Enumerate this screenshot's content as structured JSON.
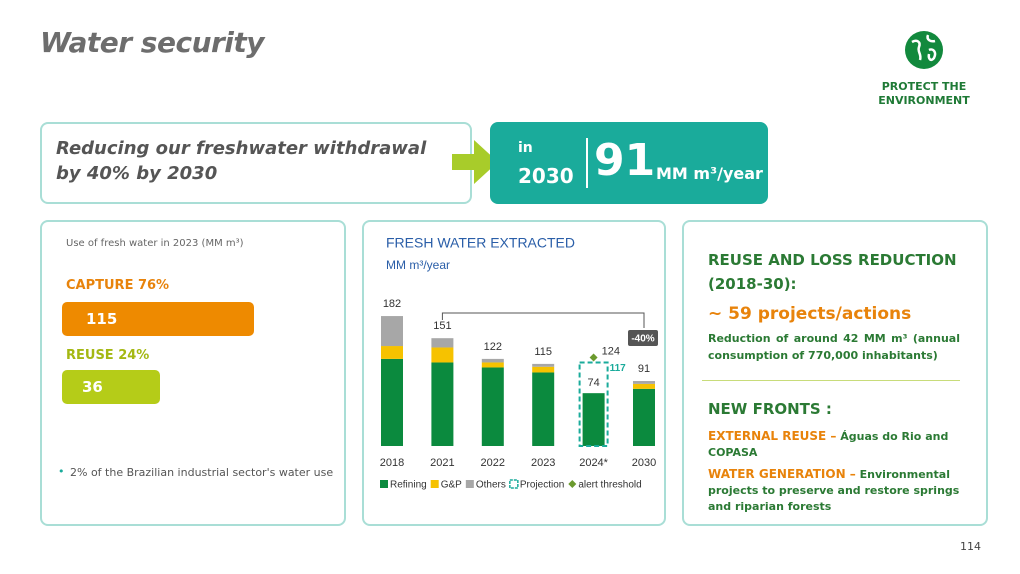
{
  "title": "Water security",
  "badge": [
    "PROTECT THE",
    "ENVIRONMENT"
  ],
  "goal": {
    "text": [
      "Reducing our freshwater withdrawal",
      "by 40% by 2030"
    ],
    "in": "in",
    "year": "2030",
    "value": "91",
    "unit": "MM m³/year"
  },
  "left_panel": {
    "caption": "Use of fresh water in 2023 (MM m³)",
    "items": [
      {
        "label": "CAPTURE 76%",
        "value": 115
      },
      {
        "label": "REUSE 24%",
        "value": 36
      }
    ],
    "note": "2% of the Brazilian industrial sector's water use"
  },
  "right_panel": {
    "heading": "REUSE AND LOSS REDUCTION (2018-30):",
    "projects": "~ 59 projects/actions",
    "body": "Reduction of around 42 MM m³ (annual consumption of 770,000 inhabitants)",
    "fronts_heading": "NEW FRONTS :",
    "fronts": [
      {
        "label": "EXTERNAL REUSE –",
        "text": "Águas do Rio and COPASA"
      },
      {
        "label": "WATER GENERATION –",
        "text": "Environmental projects to preserve and restore springs and riparian forests"
      }
    ]
  },
  "page_number": "114",
  "chart_data": {
    "type": "bar",
    "stacked": true,
    "title": "FRESH WATER EXTRACTED",
    "subtitle": "MM m³/year",
    "categories": [
      "2018",
      "2021",
      "2022",
      "2023",
      "2024*",
      "2030"
    ],
    "series": [
      {
        "name": "Refining",
        "color": "#0b8a3e",
        "values": [
          122,
          117,
          110,
          103,
          74,
          80
        ],
        "value_labels": [
          null,
          null,
          null,
          null,
          "74",
          null
        ]
      },
      {
        "name": "G&P",
        "color": "#f6c200",
        "values": [
          18,
          21,
          7,
          8,
          null,
          7
        ]
      },
      {
        "name": "Others",
        "color": "#a7a7a7",
        "values": [
          42,
          13,
          5,
          4,
          null,
          4
        ]
      },
      {
        "name": "Projection",
        "color": "#1aab9b",
        "style": "dashed",
        "values": [
          null,
          null,
          null,
          null,
          117,
          null
        ],
        "value_labels": [
          null,
          null,
          null,
          null,
          "117",
          null
        ]
      },
      {
        "name": "alert threshold",
        "color": "#6b9a2e",
        "marker": "diamond",
        "values": [
          null,
          null,
          null,
          null,
          124,
          null
        ],
        "value_labels": [
          null,
          null,
          null,
          null,
          "124",
          null
        ]
      }
    ],
    "totals": [
      182,
      151,
      122,
      115,
      null,
      91
    ],
    "annotation": "-40%"
  }
}
